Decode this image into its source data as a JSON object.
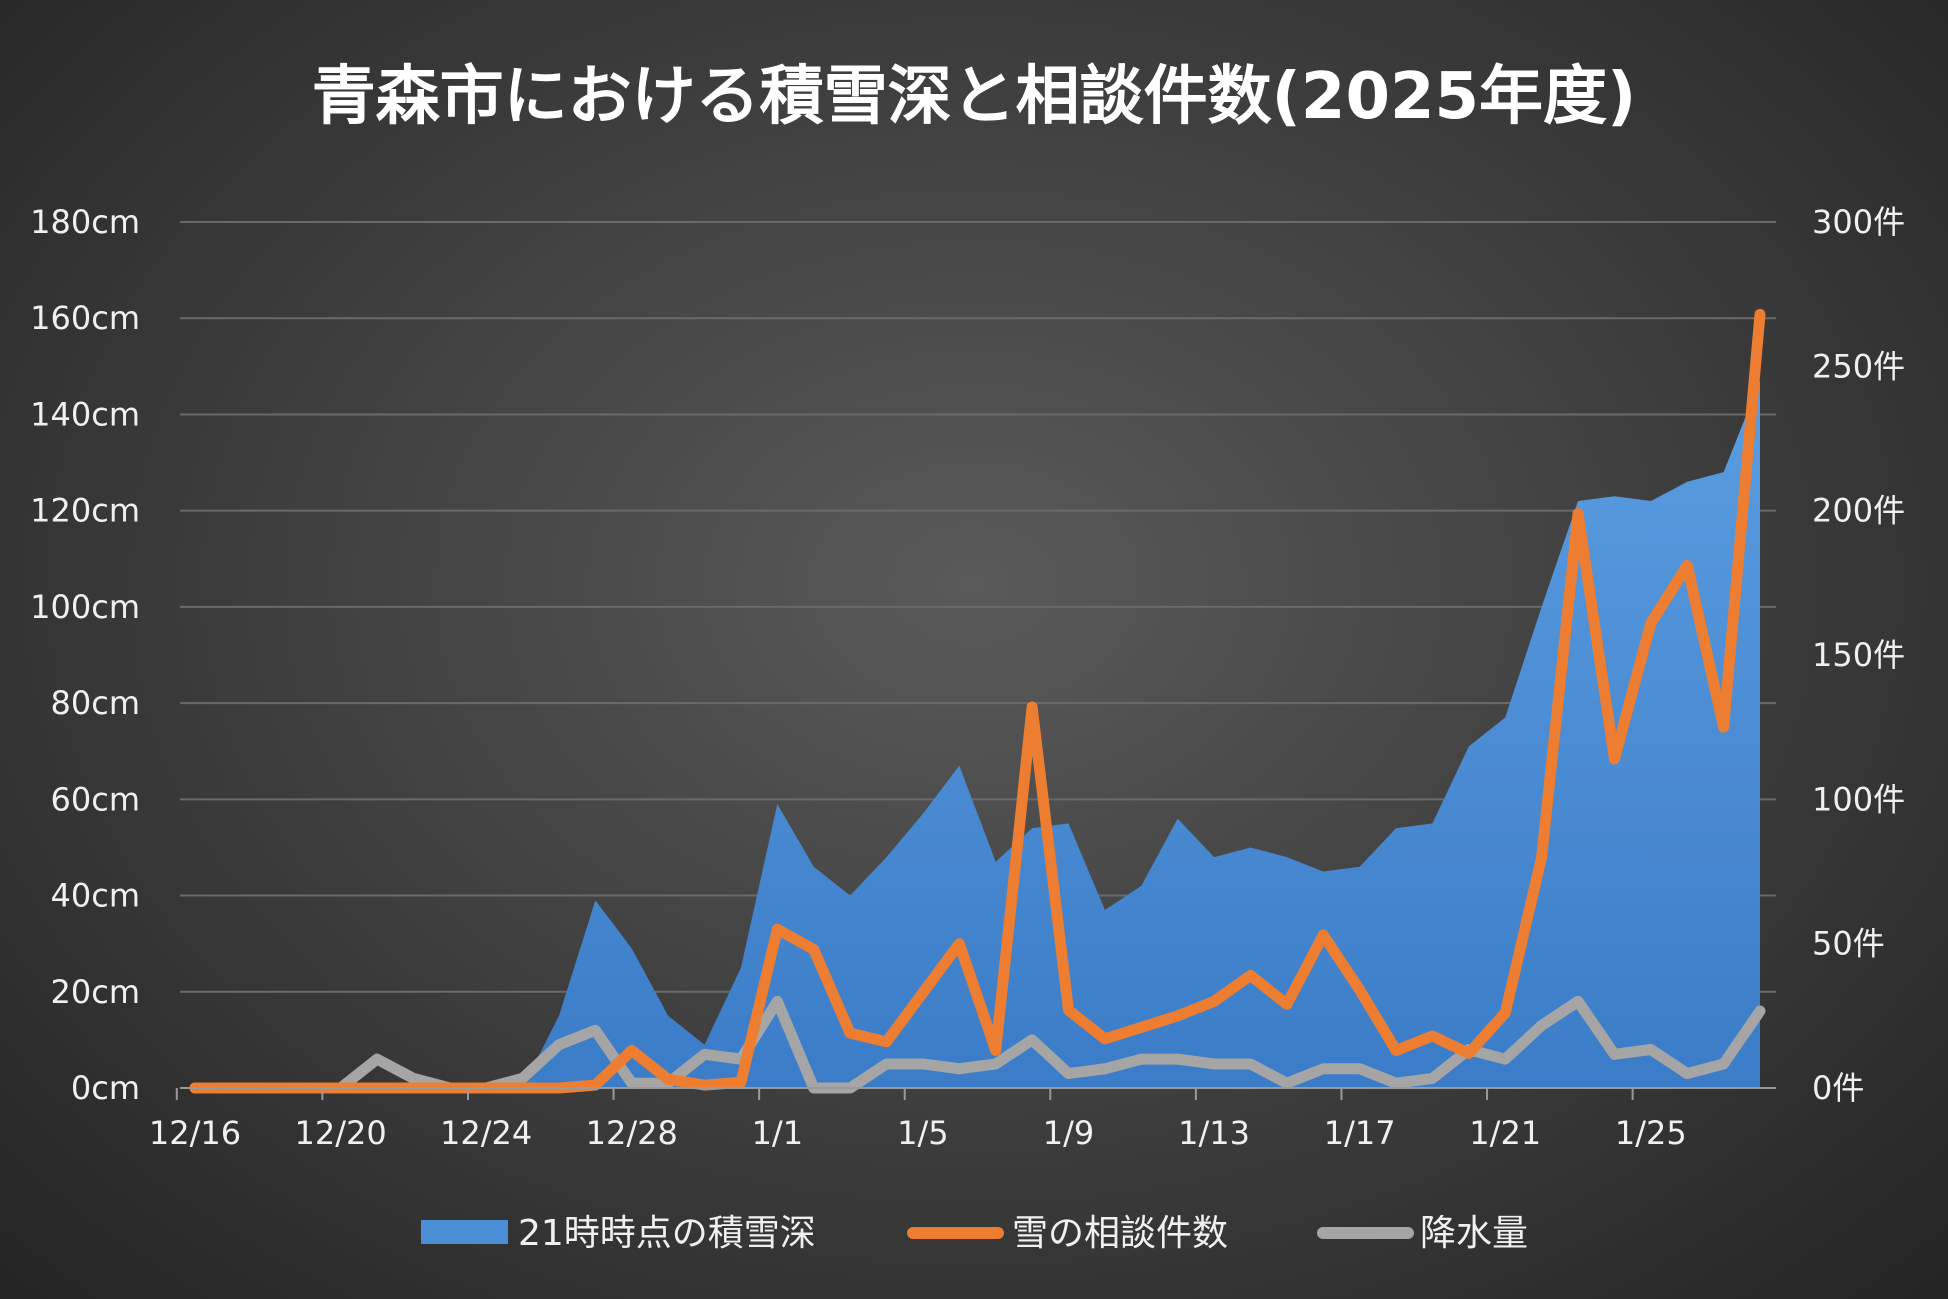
{
  "chart_data": {
    "type": "area+line",
    "title": "青森市における積雪深と相談件数(2025年度)",
    "x": [
      "12/16",
      "12/17",
      "12/18",
      "12/19",
      "12/20",
      "12/21",
      "12/22",
      "12/23",
      "12/24",
      "12/25",
      "12/26",
      "12/27",
      "12/28",
      "12/29",
      "12/30",
      "12/31",
      "1/1",
      "1/2",
      "1/3",
      "1/4",
      "1/5",
      "1/6",
      "1/7",
      "1/8",
      "1/9",
      "1/10",
      "1/11",
      "1/12",
      "1/13",
      "1/14",
      "1/15",
      "1/16",
      "1/17",
      "1/18",
      "1/19",
      "1/20",
      "1/21",
      "1/22",
      "1/23",
      "1/24",
      "1/25",
      "1/26",
      "1/27",
      "1/28"
    ],
    "x_tick_labels": [
      "12/16",
      "12/20",
      "12/24",
      "12/28",
      "1/1",
      "1/5",
      "1/9",
      "1/13",
      "1/17",
      "1/21",
      "1/25"
    ],
    "left_axis": {
      "ylim": [
        0,
        180
      ],
      "ticks": [
        0,
        20,
        40,
        60,
        80,
        100,
        120,
        140,
        160,
        180
      ],
      "unit": "cm"
    },
    "right_axis": {
      "ylim": [
        0,
        300
      ],
      "ticks": [
        0,
        50,
        100,
        150,
        200,
        250,
        300
      ],
      "unit": "件"
    },
    "grid": true,
    "legend_position": "bottom",
    "colors": {
      "snow_depth": "#4a8fd6",
      "consultations": "#ed7d31",
      "precipitation": "#a5a5a5"
    },
    "series": [
      {
        "name": "21時時点の積雪深",
        "type": "area",
        "axis": "left",
        "values": [
          0,
          0,
          0,
          0,
          0,
          0,
          0,
          0,
          0,
          0,
          15,
          39,
          29,
          15,
          9,
          25,
          59,
          46,
          40,
          48,
          57,
          67,
          47,
          54,
          55,
          37,
          42,
          56,
          48,
          50,
          48,
          45,
          46,
          54,
          55,
          71,
          77,
          100,
          122,
          123,
          122,
          126,
          128,
          147
        ]
      },
      {
        "name": "雪の相談件数",
        "type": "line",
        "axis": "right",
        "values": [
          0,
          0,
          0,
          0,
          0,
          0,
          0,
          0,
          0,
          0,
          0,
          1,
          13,
          3,
          1,
          2,
          55,
          48,
          19,
          16,
          33,
          50,
          13,
          132,
          27,
          17,
          21,
          25,
          30,
          39,
          29,
          53,
          34,
          13,
          18,
          12,
          26,
          80,
          199,
          114,
          161,
          181,
          125,
          268
        ]
      },
      {
        "name": "降水量",
        "type": "line",
        "axis": "left",
        "values": [
          0,
          0,
          0,
          0,
          0,
          6,
          2,
          0,
          0,
          2,
          9,
          12,
          1,
          1,
          7,
          6,
          18,
          0,
          0,
          5,
          5,
          4,
          5,
          10,
          3,
          4,
          6,
          6,
          5,
          5,
          1,
          4,
          4,
          1,
          2,
          8,
          6,
          13,
          18,
          7,
          8,
          3,
          5,
          16
        ]
      }
    ]
  }
}
